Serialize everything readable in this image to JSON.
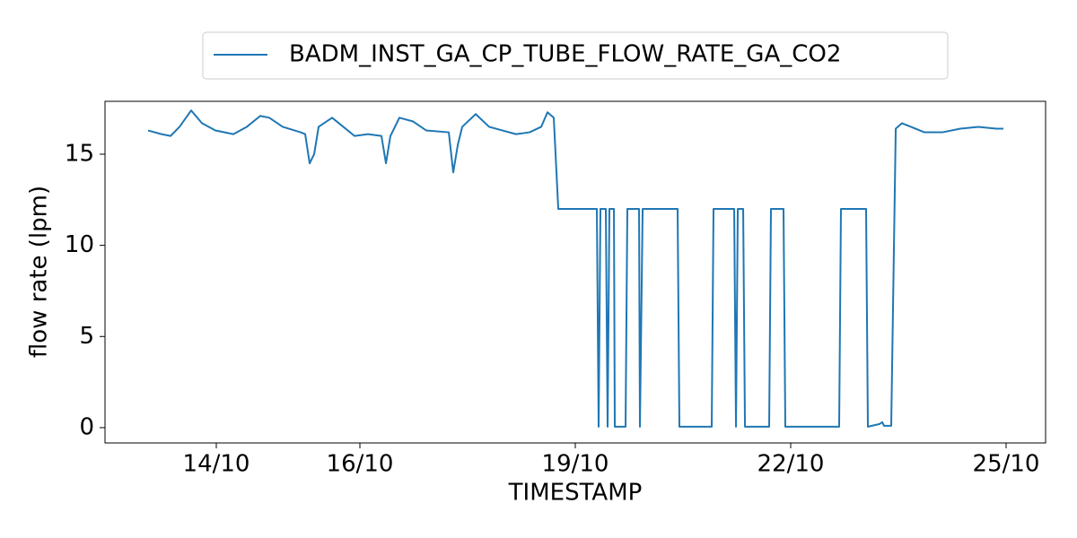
{
  "chart_data": {
    "type": "line",
    "x_label": "TIMESTAMP",
    "y_label": "flow rate (lpm)",
    "xlim": [
      12.45,
      25.55
    ],
    "ylim": [
      -0.84,
      17.9
    ],
    "xticks": [
      {
        "value": 14,
        "label": "14/10"
      },
      {
        "value": 16,
        "label": "16/10"
      },
      {
        "value": 19,
        "label": "19/10"
      },
      {
        "value": 22,
        "label": "22/10"
      },
      {
        "value": 25,
        "label": "25/10"
      }
    ],
    "yticks": [
      0,
      5,
      10,
      15
    ],
    "legend": "top",
    "series": [
      {
        "name": "BADM_INST_GA_CP_TUBE_FLOW_RATE_GA_CO2",
        "color": "#1f77b4",
        "x": [
          13.05,
          13.238,
          13.363,
          13.488,
          13.65,
          13.8,
          13.988,
          14.238,
          14.425,
          14.613,
          14.738,
          14.925,
          15.175,
          15.238,
          15.3,
          15.363,
          15.425,
          15.613,
          15.738,
          15.925,
          16.113,
          16.3,
          16.363,
          16.425,
          16.55,
          16.738,
          16.925,
          17.238,
          17.3,
          17.363,
          17.425,
          17.613,
          17.8,
          17.988,
          18.175,
          18.363,
          18.525,
          18.613,
          18.7,
          18.763,
          19.3,
          19.325,
          19.35,
          19.425,
          19.45,
          19.475,
          19.538,
          19.55,
          19.7,
          19.725,
          19.888,
          19.9,
          19.938,
          20.425,
          20.45,
          20.9,
          20.925,
          21.213,
          21.238,
          21.263,
          21.338,
          21.363,
          21.7,
          21.725,
          21.9,
          21.925,
          22.675,
          22.7,
          23.05,
          23.075,
          23.238,
          23.275,
          23.3,
          23.4,
          23.463,
          23.55,
          23.675,
          23.863,
          24.113,
          24.363,
          24.613,
          24.863,
          24.963
        ],
        "values": [
          16.3,
          16.1,
          16.0,
          16.5,
          17.4,
          16.7,
          16.3,
          16.1,
          16.5,
          17.1,
          17.0,
          16.5,
          16.2,
          16.1,
          14.5,
          15.0,
          16.5,
          17.0,
          16.6,
          16.0,
          16.1,
          16.0,
          14.5,
          16.0,
          17.0,
          16.8,
          16.3,
          16.2,
          14.0,
          15.5,
          16.5,
          17.2,
          16.5,
          16.3,
          16.1,
          16.2,
          16.5,
          17.3,
          17.0,
          12.0,
          12.0,
          0.05,
          12.0,
          12.0,
          0.05,
          12.0,
          12.0,
          0.05,
          0.05,
          12.0,
          12.0,
          0.05,
          12.0,
          12.0,
          0.05,
          0.05,
          12.0,
          12.0,
          0.05,
          12.0,
          12.0,
          0.05,
          0.05,
          12.0,
          12.0,
          0.05,
          0.05,
          12.0,
          12.0,
          0.05,
          0.2,
          0.3,
          0.1,
          0.1,
          16.4,
          16.7,
          16.5,
          16.2,
          16.2,
          16.4,
          16.5,
          16.4,
          16.4
        ]
      }
    ]
  }
}
